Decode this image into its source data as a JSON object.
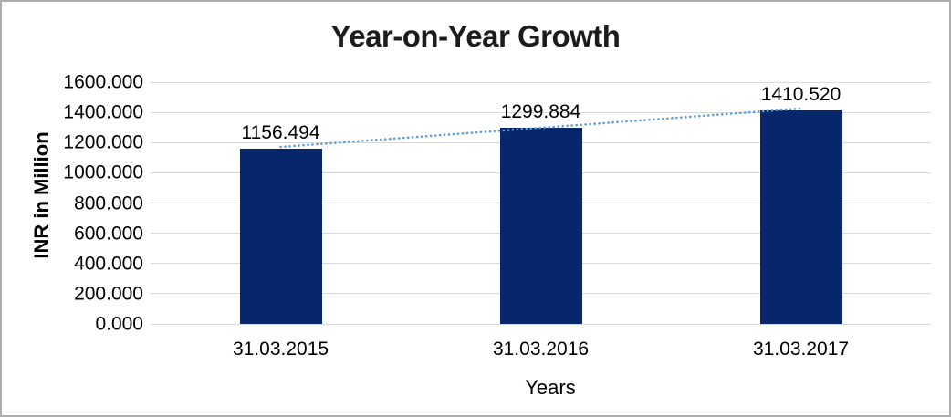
{
  "chart": {
    "border_color": "#adadad",
    "background_color": "#ffffff"
  },
  "chart_data": {
    "type": "bar",
    "title": "Year-on-Year Growth",
    "categories": [
      "31.03.2015",
      "31.03.2016",
      "31.03.2017"
    ],
    "values": [
      1156.494,
      1299.884,
      1410.52
    ],
    "data_labels": [
      "1156.494",
      "1299.884",
      "1410.520"
    ],
    "xlabel": "Years",
    "ylabel": "INR in Million",
    "ylim": [
      0,
      1600
    ],
    "ytick_step": 200,
    "ytick_labels": [
      "0.000",
      "200.000",
      "400.000",
      "600.000",
      "800.000",
      "1000.000",
      "1200.000",
      "1400.000",
      "1600.000"
    ],
    "grid": true,
    "legend_position": "none",
    "has_trendline": true,
    "trendline_style": "dotted",
    "colors": {
      "bar": "#07266b",
      "trendline": "#5b9bd5",
      "gridline": "#d9d9d9",
      "text": "#000000",
      "title_text": "#1c1c1c"
    }
  }
}
